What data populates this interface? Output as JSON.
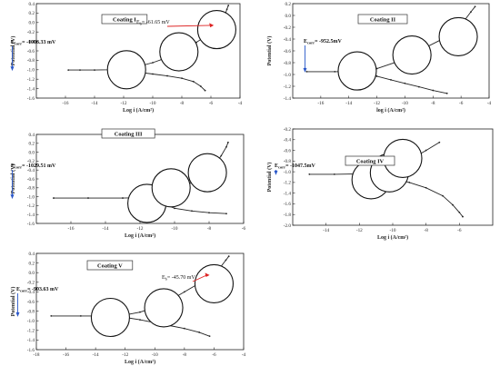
{
  "chart_data": [
    {
      "type": "line",
      "title": "Coating I",
      "xlabel": "Log i (A/cm²)",
      "ylabel": "Potential (V)",
      "xlim": [
        -18,
        -4
      ],
      "ylim": [
        -1.6,
        0.4
      ],
      "xticks": [
        -16,
        -14,
        -12,
        -10,
        -8,
        -6,
        -4
      ],
      "yticks": [
        0.4,
        0.2,
        0.0,
        -0.2,
        -0.4,
        -0.6,
        -0.8,
        -1.0,
        -1.2,
        -1.4,
        -1.6
      ],
      "annotations": [
        {
          "text": "E",
          "sub": "corr",
          "suffix": "= -1006.33 mV",
          "x": -15.8,
          "y": -1.006
        },
        {
          "text": "E",
          "sub": "b",
          "suffix": "= -61.65 mV",
          "x": -5.8,
          "y": -0.06
        }
      ],
      "series": [
        {
          "points": [
            [
              -15.8,
              -1.006
            ],
            [
              -15,
              -1.006
            ],
            [
              -14,
              -1.006
            ],
            [
              -13,
              -1.0
            ],
            [
              -12,
              -0.98
            ],
            [
              -11,
              -0.93
            ],
            [
              -10,
              -0.85
            ],
            [
              -9,
              -0.74
            ],
            [
              -8,
              -0.6
            ],
            [
              -7,
              -0.42
            ],
            [
              -6,
              -0.22
            ],
            [
              -5.4,
              -0.06
            ],
            [
              -5.1,
              0.1
            ],
            [
              -4.9,
              0.28
            ],
            [
              -4.8,
              0.36
            ]
          ]
        },
        {
          "points": [
            [
              -12,
              -1.02
            ],
            [
              -11,
              -1.05
            ],
            [
              -10,
              -1.09
            ],
            [
              -9,
              -1.13
            ],
            [
              -8,
              -1.18
            ],
            [
              -7.2,
              -1.25
            ],
            [
              -6.7,
              -1.35
            ],
            [
              -6.4,
              -1.44
            ]
          ]
        }
      ],
      "circles": [
        [
          -11.8,
          -1.0
        ],
        [
          -8.2,
          -0.62
        ],
        [
          -5.6,
          -0.15
        ]
      ]
    },
    {
      "type": "line",
      "title": "Coating II",
      "xlabel": "log i (A/cm²)",
      "ylabel": "Potential (V)",
      "xlim": [
        -18,
        -4
      ],
      "ylim": [
        -1.4,
        0.2
      ],
      "xticks": [
        -16,
        -14,
        -12,
        -10,
        -8,
        -6,
        -4
      ],
      "yticks": [
        0.2,
        0.0,
        -0.2,
        -0.4,
        -0.6,
        -0.8,
        -1.0,
        -1.2,
        -1.4
      ],
      "annotations": [
        {
          "text": "E",
          "sub": "corr",
          "suffix": "= -952.5mV",
          "x": -17.0,
          "y": -0.952
        }
      ],
      "series": [
        {
          "points": [
            [
              -17,
              -0.952
            ],
            [
              -15,
              -0.952
            ],
            [
              -13.5,
              -0.95
            ],
            [
              -12,
              -0.9
            ],
            [
              -10.5,
              -0.78
            ],
            [
              -9,
              -0.6
            ],
            [
              -7.5,
              -0.42
            ],
            [
              -6.5,
              -0.26
            ],
            [
              -5.8,
              -0.1
            ],
            [
              -5.3,
              0.06
            ],
            [
              -5.0,
              0.15
            ]
          ]
        },
        {
          "points": [
            [
              -13,
              -0.98
            ],
            [
              -12,
              -1.03
            ],
            [
              -11,
              -1.09
            ],
            [
              -10,
              -1.15
            ],
            [
              -9,
              -1.21
            ],
            [
              -8,
              -1.27
            ],
            [
              -7,
              -1.32
            ]
          ]
        }
      ],
      "circles": [
        [
          -13.4,
          -0.94
        ],
        [
          -9.5,
          -0.67
        ],
        [
          -6.2,
          -0.36
        ]
      ]
    },
    {
      "type": "line",
      "title": "Coating III",
      "xlabel": "Log i (A/cm²)",
      "ylabel": "Potential (V)",
      "xlim": [
        -18,
        -6
      ],
      "ylim": [
        -1.6,
        0.4
      ],
      "xticks": [
        -16,
        -14,
        -12,
        -10,
        -8,
        -6
      ],
      "yticks": [
        0.4,
        0.2,
        0.0,
        -0.2,
        -0.4,
        -0.6,
        -0.8,
        -1.0,
        -1.2,
        -1.4,
        -1.6
      ],
      "annotations": [
        {
          "text": "E",
          "sub": "corr",
          "suffix": "= -1029.51 mV",
          "x": -17.0,
          "y": -1.03
        }
      ],
      "series": [
        {
          "points": [
            [
              -17,
              -1.03
            ],
            [
              -15,
              -1.03
            ],
            [
              -13,
              -1.03
            ],
            [
              -11.8,
              -1.02
            ],
            [
              -11,
              -0.97
            ],
            [
              -10,
              -0.86
            ],
            [
              -9,
              -0.68
            ],
            [
              -8.2,
              -0.5
            ],
            [
              -7.7,
              -0.3
            ],
            [
              -7.3,
              -0.08
            ],
            [
              -7.0,
              0.12
            ],
            [
              -6.9,
              0.22
            ]
          ]
        },
        {
          "points": [
            [
              -11.5,
              -1.08
            ],
            [
              -10.5,
              -1.18
            ],
            [
              -10,
              -1.26
            ],
            [
              -9,
              -1.32
            ],
            [
              -8,
              -1.36
            ],
            [
              -7,
              -1.38
            ]
          ]
        }
      ],
      "circles": [
        [
          -11.6,
          -1.15
        ],
        [
          -10.2,
          -0.8
        ],
        [
          -8.1,
          -0.46
        ]
      ]
    },
    {
      "type": "line",
      "title": "Coating IV",
      "xlabel": "Log i (A/cm²)",
      "ylabel": "Potential (V)",
      "xlim": [
        -16,
        -4
      ],
      "ylim": [
        -2.0,
        -0.2
      ],
      "xticks": [
        -14,
        -12,
        -10,
        -8,
        -6
      ],
      "yticks": [
        -0.2,
        -0.4,
        -0.6,
        -0.8,
        -1.0,
        -1.2,
        -1.4,
        -1.6,
        -1.8,
        -2.0
      ],
      "annotations": [
        {
          "text": "E",
          "sub": "corr",
          "suffix": "= -1047.5mV",
          "x": -15.0,
          "y": -1.047
        }
      ],
      "series": [
        {
          "points": [
            [
              -15,
              -1.047
            ],
            [
              -13.5,
              -1.047
            ],
            [
              -12,
              -1.04
            ],
            [
              -11,
              -1.0
            ],
            [
              -10,
              -0.92
            ],
            [
              -9,
              -0.78
            ],
            [
              -8,
              -0.6
            ],
            [
              -7.2,
              -0.45
            ]
          ]
        },
        {
          "points": [
            [
              -11,
              -1.06
            ],
            [
              -10,
              -1.12
            ],
            [
              -9,
              -1.2
            ],
            [
              -8,
              -1.3
            ],
            [
              -7,
              -1.45
            ],
            [
              -6.4,
              -1.62
            ],
            [
              -6,
              -1.76
            ],
            [
              -5.8,
              -1.84
            ]
          ]
        }
      ],
      "circles": [
        [
          -11.3,
          -1.15
        ],
        [
          -10.2,
          -1.02
        ],
        [
          -9.4,
          -0.75
        ]
      ]
    },
    {
      "type": "line",
      "title": "Coating V",
      "xlabel": "Log i (A/cm²)",
      "ylabel": "Potential (V)",
      "xlim": [
        -18,
        -4
      ],
      "ylim": [
        -1.6,
        0.4
      ],
      "xticks": [
        -18,
        -16,
        -14,
        -12,
        -10,
        -8,
        -6,
        -4
      ],
      "yticks": [
        0.4,
        0.2,
        0.0,
        -0.2,
        -0.4,
        -0.6,
        -0.8,
        -1.0,
        -1.2,
        -1.4,
        -1.6
      ],
      "annotations": [
        {
          "text": "E",
          "sub": "corr",
          "suffix": "= -903.63 mV",
          "x": -17.0,
          "y": -0.9
        },
        {
          "text": "E",
          "sub": "b",
          "suffix": "= -45.70 mV",
          "x": -6.3,
          "y": -0.05
        }
      ],
      "series": [
        {
          "points": [
            [
              -17,
              -0.9
            ],
            [
              -15,
              -0.9
            ],
            [
              -13,
              -0.9
            ],
            [
              -12,
              -0.88
            ],
            [
              -11,
              -0.82
            ],
            [
              -10,
              -0.72
            ],
            [
              -9,
              -0.58
            ],
            [
              -8,
              -0.4
            ],
            [
              -7,
              -0.22
            ],
            [
              -6.2,
              -0.06
            ],
            [
              -5.6,
              0.1
            ],
            [
              -5.2,
              0.26
            ],
            [
              -5.0,
              0.34
            ]
          ]
        },
        {
          "points": [
            [
              -12,
              -0.93
            ],
            [
              -11,
              -0.98
            ],
            [
              -10,
              -1.04
            ],
            [
              -9,
              -1.1
            ],
            [
              -8,
              -1.16
            ],
            [
              -7,
              -1.24
            ],
            [
              -6.3,
              -1.32
            ]
          ]
        }
      ],
      "circles": [
        [
          -13.0,
          -0.93
        ],
        [
          -9.4,
          -0.73
        ],
        [
          -6.0,
          -0.23
        ]
      ]
    }
  ]
}
